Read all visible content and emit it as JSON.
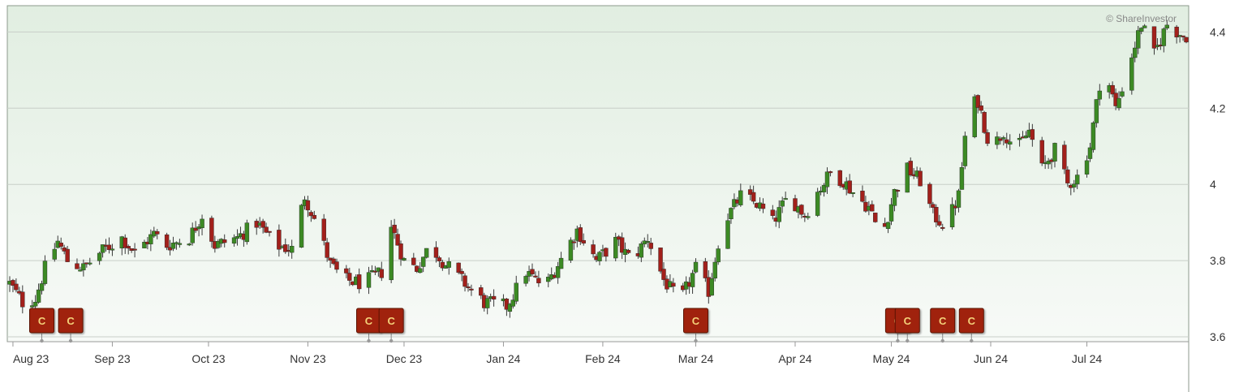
{
  "copyright": "© ShareInvestor",
  "colors": {
    "up": "#3c8a24",
    "down": "#a2201b",
    "wick": "#3a3a3a",
    "marker": "#a0220c",
    "marker_text": "#f4d27a",
    "grid": "#c8cec8",
    "plot_bg_top": "#e1eee1",
    "plot_bg_bottom": "#f7faf7"
  },
  "chart_data": {
    "type": "candlestick",
    "title": "",
    "xlabel": "",
    "ylabel": "",
    "ylim": [
      3.6,
      4.42
    ],
    "y_ticks": [
      "4.4",
      "4.2",
      "4",
      "3.8",
      "3.6"
    ],
    "x_ticks": [
      "Aug 23",
      "Sep 23",
      "Oct 23",
      "Nov 23",
      "Dec 23",
      "Jan 24",
      "Feb 24",
      "Mar 24",
      "Apr 24",
      "May 24",
      "Jun 24",
      "Jul 24"
    ],
    "x_range": [
      "2023-07-31",
      "2024-08-01"
    ],
    "grid": true,
    "legend": "none",
    "close_points": [
      [
        "2023-07-31",
        3.74
      ],
      [
        "2023-08-04",
        3.69
      ],
      [
        "2023-08-08",
        3.7
      ],
      [
        "2023-08-11",
        3.78
      ],
      [
        "2023-08-15",
        3.85
      ],
      [
        "2023-08-18",
        3.8
      ],
      [
        "2023-08-23",
        3.78
      ],
      [
        "2023-08-28",
        3.82
      ],
      [
        "2023-09-04",
        3.86
      ],
      [
        "2023-09-08",
        3.82
      ],
      [
        "2023-09-14",
        3.87
      ],
      [
        "2023-09-18",
        3.84
      ],
      [
        "2023-09-25",
        3.86
      ],
      [
        "2023-09-29",
        3.92
      ],
      [
        "2023-10-03",
        3.84
      ],
      [
        "2023-10-10",
        3.86
      ],
      [
        "2023-10-16",
        3.9
      ],
      [
        "2023-10-22",
        3.84
      ],
      [
        "2023-10-27",
        3.83
      ],
      [
        "2023-10-31",
        3.97
      ],
      [
        "2023-11-04",
        3.89
      ],
      [
        "2023-11-08",
        3.79
      ],
      [
        "2023-11-12",
        3.75
      ],
      [
        "2023-11-18",
        3.74
      ],
      [
        "2023-11-24",
        3.77
      ],
      [
        "2023-11-27",
        3.89
      ],
      [
        "2023-12-01",
        3.8
      ],
      [
        "2023-12-05",
        3.78
      ],
      [
        "2023-12-09",
        3.84
      ],
      [
        "2023-12-14",
        3.79
      ],
      [
        "2023-12-20",
        3.74
      ],
      [
        "2023-12-26",
        3.69
      ],
      [
        "2024-01-02",
        3.68
      ],
      [
        "2024-01-08",
        3.77
      ],
      [
        "2024-01-14",
        3.73
      ],
      [
        "2024-01-20",
        3.82
      ],
      [
        "2024-01-24",
        3.88
      ],
      [
        "2024-01-30",
        3.8
      ],
      [
        "2024-02-05",
        3.85
      ],
      [
        "2024-02-10",
        3.8
      ],
      [
        "2024-02-15",
        3.86
      ],
      [
        "2024-02-20",
        3.75
      ],
      [
        "2024-02-25",
        3.69
      ],
      [
        "2024-03-01",
        3.78
      ],
      [
        "2024-03-05",
        3.72
      ],
      [
        "2024-03-09",
        3.89
      ],
      [
        "2024-03-15",
        3.97
      ],
      [
        "2024-03-20",
        3.95
      ],
      [
        "2024-03-25",
        3.9
      ],
      [
        "2024-03-30",
        3.97
      ],
      [
        "2024-04-04",
        3.92
      ],
      [
        "2024-04-08",
        3.98
      ],
      [
        "2024-04-12",
        4.03
      ],
      [
        "2024-04-16",
        4.01
      ],
      [
        "2024-04-20",
        3.97
      ],
      [
        "2024-04-24",
        3.94
      ],
      [
        "2024-04-28",
        3.86
      ],
      [
        "2024-05-02",
        3.98
      ],
      [
        "2024-05-06",
        4.04
      ],
      [
        "2024-05-10",
        4.01
      ],
      [
        "2024-05-14",
        3.92
      ],
      [
        "2024-05-18",
        3.89
      ],
      [
        "2024-05-22",
        3.97
      ],
      [
        "2024-05-25",
        4.2
      ],
      [
        "2024-05-28",
        4.22
      ],
      [
        "2024-06-01",
        4.09
      ],
      [
        "2024-06-05",
        4.14
      ],
      [
        "2024-06-09",
        4.09
      ],
      [
        "2024-06-13",
        4.14
      ],
      [
        "2024-06-17",
        4.04
      ],
      [
        "2024-06-21",
        4.09
      ],
      [
        "2024-06-25",
        4.0
      ],
      [
        "2024-06-28",
        4.02
      ],
      [
        "2024-07-02",
        4.1
      ],
      [
        "2024-07-06",
        4.32
      ],
      [
        "2024-07-10",
        4.2
      ],
      [
        "2024-07-14",
        4.31
      ],
      [
        "2024-07-18",
        4.42
      ],
      [
        "2024-07-22",
        4.34
      ],
      [
        "2024-07-26",
        4.42
      ],
      [
        "2024-07-31",
        4.39
      ]
    ],
    "event_markers": [
      {
        "date": "2023-08-10",
        "label": "C"
      },
      {
        "date": "2023-08-19",
        "label": "C"
      },
      {
        "date": "2023-11-20",
        "label": "C"
      },
      {
        "date": "2023-11-27",
        "label": "C"
      },
      {
        "date": "2024-03-01",
        "label": "C"
      },
      {
        "date": "2024-05-03",
        "label": "C"
      },
      {
        "date": "2024-05-06",
        "label": "C"
      },
      {
        "date": "2024-05-17",
        "label": "C"
      },
      {
        "date": "2024-05-26",
        "label": "C"
      }
    ]
  }
}
